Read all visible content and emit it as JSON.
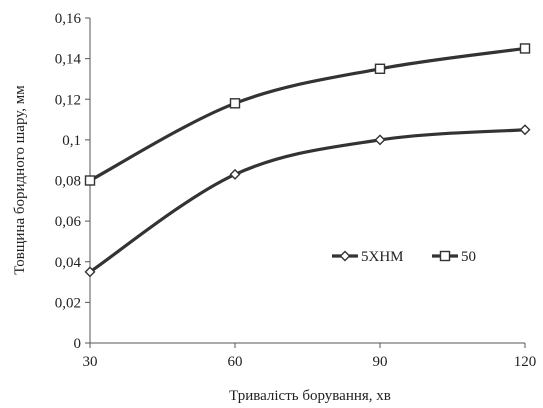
{
  "chart_data": {
    "type": "line",
    "title": "",
    "xlabel": "Тривалість борування, хв",
    "ylabel": "Товщина боридного шару, мм",
    "x": [
      30,
      60,
      90,
      120
    ],
    "xticks": [
      "30",
      "60",
      "90",
      "120"
    ],
    "yticks": [
      "0",
      "0,02",
      "0,04",
      "0,06",
      "0,08",
      "0,1",
      "0,12",
      "0,14",
      "0,16"
    ],
    "ylim": [
      0,
      0.16
    ],
    "xlim": [
      30,
      120
    ],
    "grid": false,
    "legend_position": "center-right",
    "line_color": "#333333",
    "series": [
      {
        "name": "5ХНМ",
        "marker": "diamond",
        "values": [
          0.035,
          0.083,
          0.1,
          0.105
        ]
      },
      {
        "name": "50",
        "marker": "square",
        "values": [
          0.08,
          0.118,
          0.135,
          0.145
        ]
      }
    ]
  }
}
